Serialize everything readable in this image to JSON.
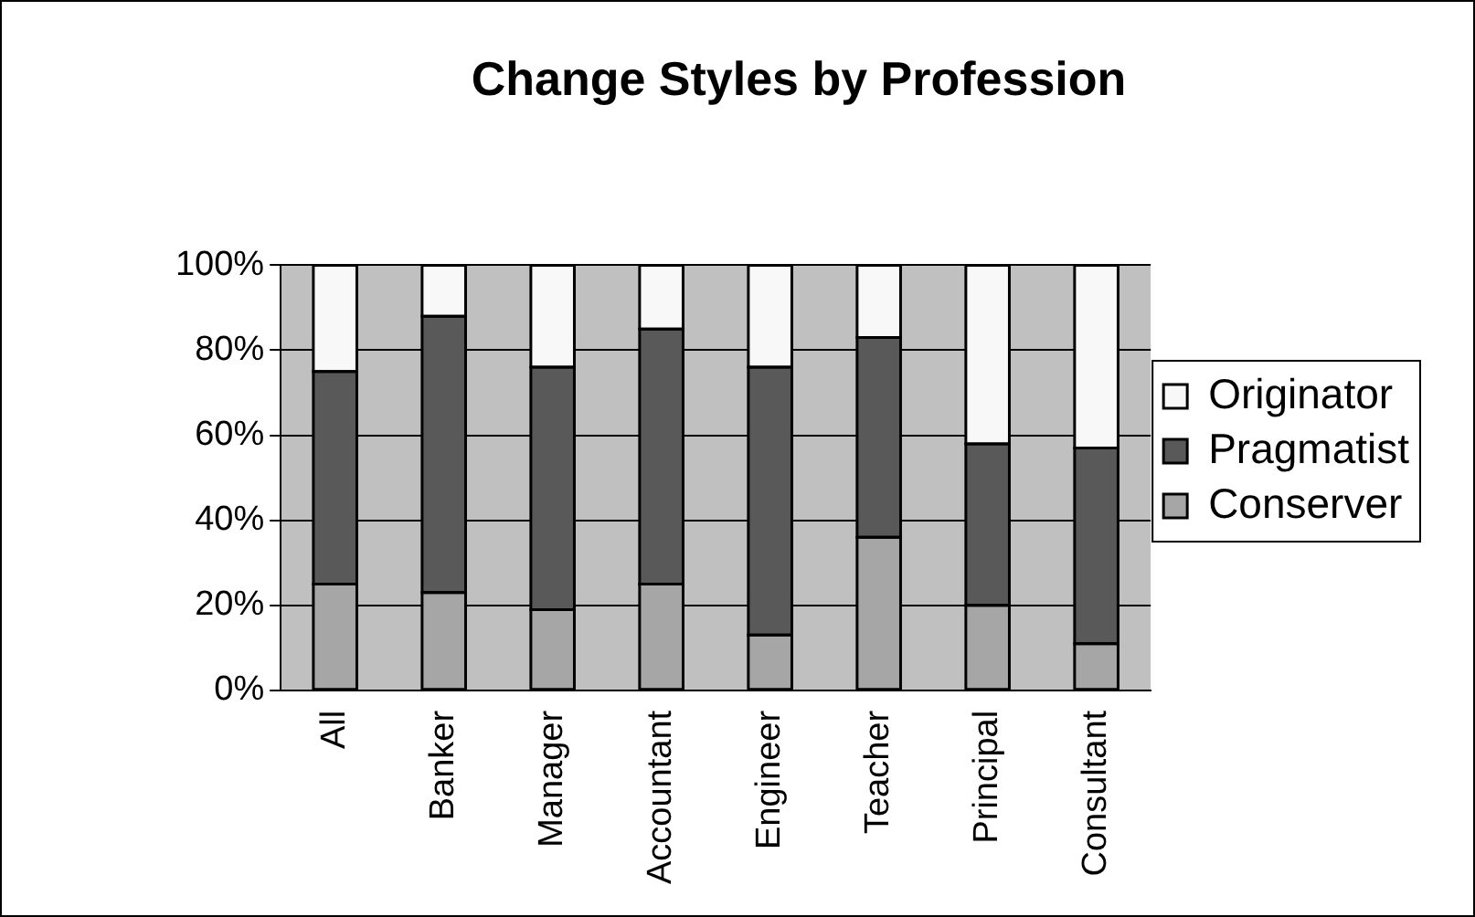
{
  "chart_data": {
    "type": "bar",
    "title": "Change Styles by Profession",
    "categories": [
      "All",
      "Banker",
      "Manager",
      "Accountant",
      "Engineer",
      "Teacher",
      "Principal",
      "Consultant"
    ],
    "stacked": true,
    "series": [
      {
        "name": "Conserver",
        "color": "#a6a6a6",
        "values": [
          25,
          23,
          19,
          25,
          13,
          36,
          20,
          11
        ]
      },
      {
        "name": "Pragmatist",
        "color": "#595959",
        "values": [
          50,
          65,
          57,
          60,
          63,
          47,
          38,
          46
        ]
      },
      {
        "name": "Originator",
        "color": "#f8f8f8",
        "values": [
          25,
          12,
          24,
          15,
          24,
          17,
          42,
          43
        ]
      }
    ],
    "ylim": [
      0,
      100
    ],
    "yticks": [
      {
        "value": 0,
        "label": "0%"
      },
      {
        "value": 20,
        "label": "20%"
      },
      {
        "value": 40,
        "label": "40%"
      },
      {
        "value": 60,
        "label": "60%"
      },
      {
        "value": 80,
        "label": "80%"
      },
      {
        "value": 100,
        "label": "100%"
      }
    ],
    "grid": "y",
    "legend": "right"
  }
}
